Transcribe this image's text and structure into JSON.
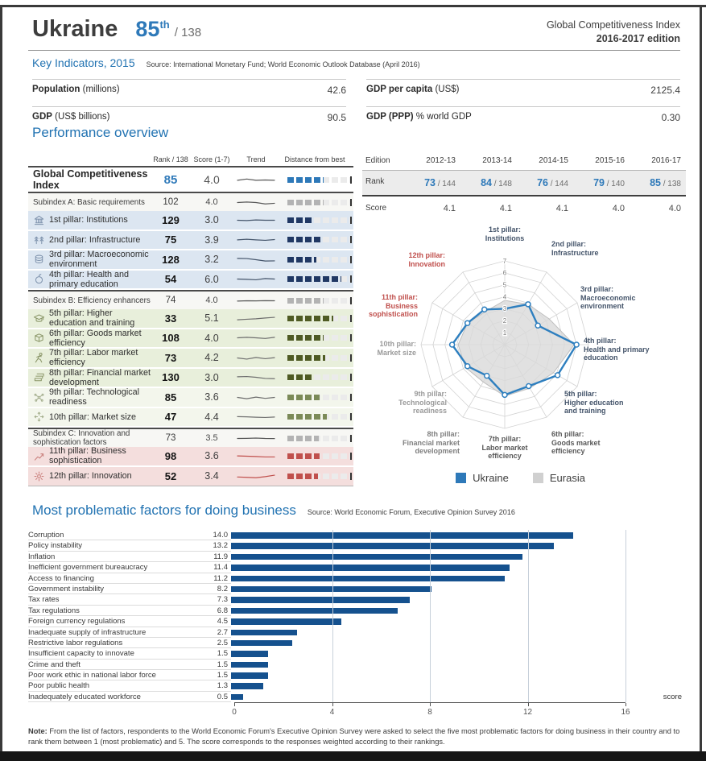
{
  "header": {
    "country": "Ukraine",
    "rank": "85",
    "rank_suffix": "th",
    "rank_slash": "/",
    "rank_total": "138",
    "title_line1": "Global Competitiveness Index",
    "title_line2": "2016-2017 edition"
  },
  "key_indicators": {
    "title": "Key Indicators, 2015",
    "source": "Source: International Monetary Fund; World Economic Outlook Database (April 2016)",
    "items": [
      {
        "label": "Population",
        "unit": "(millions)",
        "value": "42.6"
      },
      {
        "label": "GDP",
        "unit": "(US$ billions)",
        "value": "90.5"
      },
      {
        "label": "GDP per capita",
        "unit": "(US$)",
        "value": "2125.4"
      },
      {
        "label": "GDP (PPP)",
        "unit": "% world GDP",
        "value": "0.30"
      }
    ]
  },
  "performance": {
    "title": "Performance overview",
    "columns": [
      "Rank / 138",
      "Score (1-7)",
      "Trend",
      "Distance from best"
    ],
    "rows": [
      {
        "type": "gci",
        "label": "Global Competitiveness Index",
        "rank": "85",
        "score": "4.0",
        "tint": "#ffffff",
        "bar": "#2e79b9",
        "trend_color": "#595959",
        "trend": [
          0.55,
          0.35,
          0.55,
          0.5,
          0.55
        ]
      },
      {
        "type": "sub",
        "label": "Subindex A: Basic requirements",
        "rank": "102",
        "score": "4.0",
        "tint": "#f7f7f4",
        "bar": "#b3b3b3",
        "trend_color": "#595959",
        "trend": [
          0.5,
          0.42,
          0.5,
          0.72,
          0.62
        ]
      },
      {
        "type": "pill",
        "icon": "institutions-icon",
        "label": "1st pillar: Institutions",
        "rank": "129",
        "score": "3.0",
        "tint": "#dce6f1",
        "bar": "#203864",
        "icon_color": "#7f93ad",
        "trend_color": "#44546a",
        "trend": [
          0.5,
          0.55,
          0.45,
          0.5,
          0.5
        ]
      },
      {
        "type": "pill",
        "icon": "infrastructure-icon",
        "label": "2nd pillar: Infrastructure",
        "rank": "75",
        "score": "3.9",
        "tint": "#dce6f1",
        "bar": "#203864",
        "icon_color": "#7f93ad",
        "trend_color": "#44546a",
        "trend": [
          0.55,
          0.45,
          0.55,
          0.62,
          0.5
        ]
      },
      {
        "type": "pill",
        "icon": "macroeconomic-icon",
        "label": "3rd pillar: Macroeconomic environment",
        "rank": "128",
        "score": "3.2",
        "tint": "#dce6f1",
        "bar": "#203864",
        "icon_color": "#7f93ad",
        "trend_color": "#44546a",
        "trend": [
          0.3,
          0.32,
          0.5,
          0.7,
          0.68
        ]
      },
      {
        "type": "pill",
        "icon": "health-icon",
        "label": "4th pillar: Health and primary education",
        "rank": "54",
        "score": "6.0",
        "tint": "#dce6f1",
        "bar": "#203864",
        "icon_color": "#7f93ad",
        "trend_color": "#44546a",
        "trend": [
          0.5,
          0.55,
          0.62,
          0.42,
          0.5
        ]
      },
      {
        "type": "sub",
        "label": "Subindex B: Efficiency enhancers",
        "rank": "74",
        "score": "4.0",
        "tint": "#f7f7f4",
        "bar": "#b3b3b3",
        "trend_color": "#595959",
        "trend": [
          0.55,
          0.5,
          0.52,
          0.48,
          0.5
        ]
      },
      {
        "type": "pill",
        "icon": "higher-education-icon",
        "label": "5th pillar: Higher education and training",
        "rank": "33",
        "score": "5.1",
        "tint": "#e8efdb",
        "bar": "#4f5b24",
        "icon_color": "#8a9668",
        "trend_color": "#6e6e6e",
        "trend": [
          0.7,
          0.62,
          0.55,
          0.42,
          0.32
        ]
      },
      {
        "type": "pill",
        "icon": "goods-market-icon",
        "label": "6th pillar: Goods market efficiency",
        "rank": "108",
        "score": "4.0",
        "tint": "#e8efdb",
        "bar": "#4f5b24",
        "icon_color": "#8a9668",
        "trend_color": "#6e6e6e",
        "trend": [
          0.5,
          0.42,
          0.5,
          0.6,
          0.42
        ]
      },
      {
        "type": "pill",
        "icon": "labor-market-icon",
        "label": "7th pillar: Labor market efficiency",
        "rank": "73",
        "score": "4.2",
        "tint": "#e8efdb",
        "bar": "#4f5b24",
        "icon_color": "#8a9668",
        "trend_color": "#6e6e6e",
        "trend": [
          0.5,
          0.68,
          0.42,
          0.62,
          0.45
        ]
      },
      {
        "type": "pill",
        "icon": "financial-market-icon",
        "label": "8th pillar: Financial market development",
        "rank": "130",
        "score": "3.0",
        "tint": "#e8efdb",
        "bar": "#4f5b24",
        "icon_color": "#8a9668",
        "trend_color": "#6e6e6e",
        "trend": [
          0.42,
          0.38,
          0.5,
          0.68,
          0.72
        ]
      },
      {
        "type": "pill",
        "icon": "technological-icon",
        "label": "9th pillar: Technological readiness",
        "rank": "85",
        "score": "3.6",
        "tint": "#f3f6ec",
        "bar": "#7b8a58",
        "icon_color": "#a3ad8c",
        "trend_color": "#6e6e6e",
        "trend": [
          0.5,
          0.7,
          0.45,
          0.65,
          0.5
        ]
      },
      {
        "type": "pill",
        "icon": "market-size-icon",
        "label": "10th pillar: Market size",
        "rank": "47",
        "score": "4.4",
        "tint": "#f3f6ec",
        "bar": "#7b8a58",
        "icon_color": "#a3ad8c",
        "trend_color": "#6e6e6e",
        "trend": [
          0.48,
          0.52,
          0.58,
          0.62,
          0.55
        ]
      },
      {
        "type": "sub",
        "label": "Subindex C: Innovation and sophistication factors",
        "rank": "73",
        "score": "3.5",
        "tint": "#f7f7f4",
        "bar": "#b3b3b3",
        "trend_color": "#595959",
        "trend": [
          0.5,
          0.48,
          0.44,
          0.5,
          0.52
        ]
      },
      {
        "type": "pill",
        "icon": "business-sophistication-icon",
        "label": "11th pillar: Business sophistication",
        "rank": "98",
        "score": "3.6",
        "tint": "#f4dedd",
        "bar": "#c0504d",
        "icon_color": "#c97e7b",
        "trend_color": "#c0504d",
        "trend": [
          0.45,
          0.5,
          0.55,
          0.62,
          0.62
        ]
      },
      {
        "type": "pill",
        "icon": "innovation-icon",
        "label": "12th pillar: Innovation",
        "rank": "52",
        "score": "3.4",
        "tint": "#f4dedd",
        "bar": "#c0504d",
        "icon_color": "#c97e7b",
        "trend_color": "#c0504d",
        "trend": [
          0.6,
          0.66,
          0.72,
          0.55,
          0.32
        ]
      }
    ]
  },
  "editions": {
    "col_label": "Edition",
    "rank_label": "Rank",
    "score_label": "Score",
    "years": [
      "2012-13",
      "2013-14",
      "2014-15",
      "2015-16",
      "2016-17"
    ],
    "ranks": [
      {
        "rank": "73",
        "total": "144"
      },
      {
        "rank": "84",
        "total": "148"
      },
      {
        "rank": "76",
        "total": "144"
      },
      {
        "rank": "79",
        "total": "140"
      },
      {
        "rank": "85",
        "total": "138"
      }
    ],
    "scores": [
      "4.1",
      "4.1",
      "4.1",
      "4.0",
      "4.0"
    ]
  },
  "problematic": {
    "title": "Most problematic factors for doing business",
    "source": "Source: World Economic Forum, Executive Opinion Survey 2016"
  },
  "note": {
    "label": "Note:",
    "text": " From the list of factors, respondents to the World Economic Forum's Executive Opinion Survey were asked to select the five most problematic factors for doing business in their country and to rank them between 1 (most problematic) and 5. The score corresponds to the responses weighted according to their rankings."
  },
  "chart_data": [
    {
      "type": "radar",
      "title": "Performance overview radar",
      "categories": [
        "1st pillar:\nInstitutions",
        "2nd pillar:\nInfrastructure",
        "3rd pillar:\nMacroeconomic\nenvironment",
        "4th pillar:\nHealth and primary\neducation",
        "5th pillar:\nHigher education\nand training",
        "6th pillar:\nGoods market\nefficiency",
        "7th pillar:\nLabor market\nefficiency",
        "8th pillar:\nFinancial market\ndevelopment",
        "9th pillar:\nTechnological\nreadiness",
        "10th pillar:\nMarket size",
        "11th pillar:\nBusiness\nsophistication",
        "12th pillar:\nInnovation"
      ],
      "label_colors": [
        "#44546a",
        "#44546a",
        "#44546a",
        "#44546a",
        "#44546a",
        "#595959",
        "#595959",
        "#7f7f7f",
        "#9a9a9a",
        "#9a9a9a",
        "#c0504d",
        "#c0504d"
      ],
      "series": [
        {
          "name": "Ukraine",
          "color": "#2e7fbf",
          "values": [
            3.0,
            3.9,
            3.2,
            6.0,
            5.1,
            4.0,
            4.2,
            3.0,
            3.6,
            4.4,
            3.6,
            3.4
          ]
        },
        {
          "name": "Eurasia",
          "color": "#d9d9d9",
          "values": [
            3.7,
            3.9,
            4.3,
            5.8,
            4.7,
            4.2,
            4.3,
            3.6,
            3.8,
            3.9,
            3.6,
            3.2
          ]
        }
      ],
      "rlim": [
        0,
        7
      ],
      "rticks": [
        1,
        2,
        3,
        4,
        5,
        6,
        7
      ],
      "legend_position": "bottom",
      "grid": true
    },
    {
      "type": "bar",
      "orientation": "horizontal",
      "categories": [
        "Corruption",
        "Policy instability",
        "Inflation",
        "Inefficient government bureaucracy",
        "Access to financing",
        "Government instability",
        "Tax rates",
        "Tax regulations",
        "Foreign currency regulations",
        "Inadequate supply of infrastructure",
        "Restrictive labor regulations",
        "Insufficient capacity to innovate",
        "Crime and theft",
        "Poor work ethic in national labor force",
        "Poor public health",
        "Inadequately educated workforce"
      ],
      "values": [
        14.0,
        13.2,
        11.9,
        11.4,
        11.2,
        8.2,
        7.3,
        6.8,
        4.5,
        2.7,
        2.5,
        1.5,
        1.5,
        1.5,
        1.3,
        0.5
      ],
      "value_labels": [
        "14.0",
        "13.2",
        "11.9",
        "11.4",
        "11.2",
        "8.2",
        "7.3",
        "6.8",
        "4.5",
        "2.7",
        "2.5",
        "1.5",
        "1.5",
        "1.5",
        "1.3",
        "0.5"
      ],
      "title": "Most problematic factors for doing business",
      "xlabel": "score",
      "xlim": [
        0,
        16
      ],
      "xticks": [
        0,
        4,
        8,
        12,
        16
      ],
      "bar_color": "#15518e",
      "grid": true
    }
  ]
}
